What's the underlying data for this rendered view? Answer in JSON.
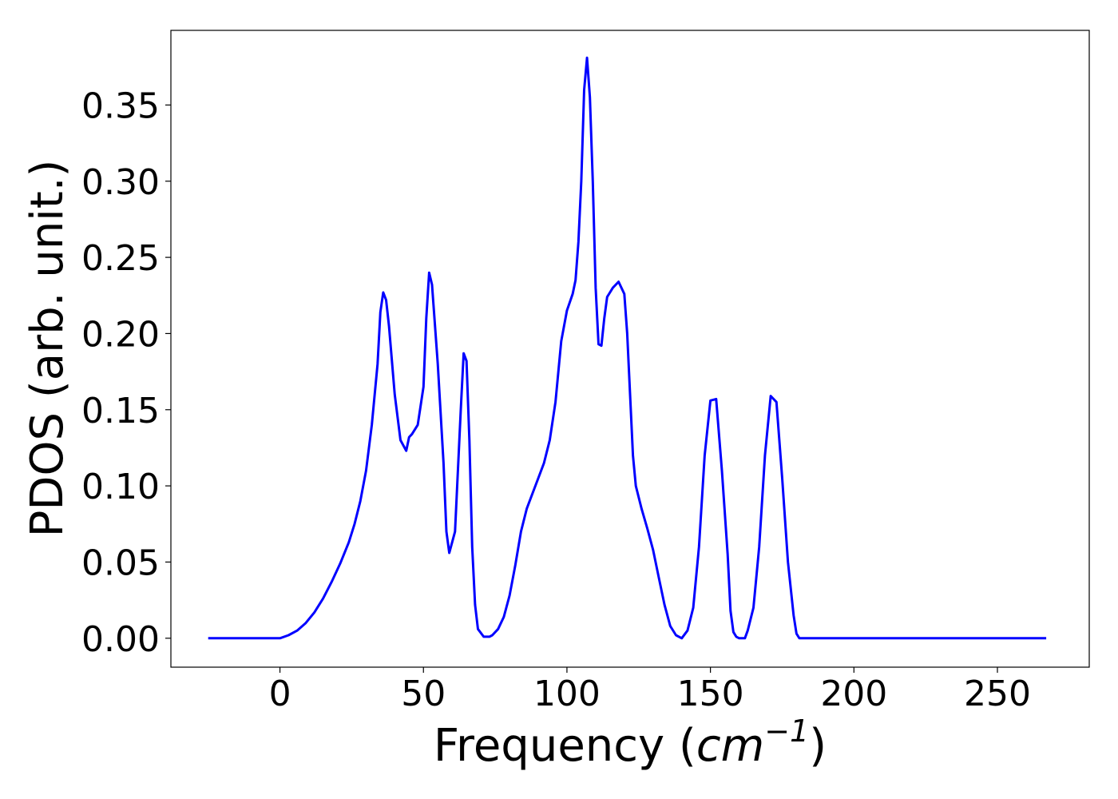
{
  "chart_data": {
    "type": "line",
    "xlabel": "Frequency",
    "xlabel_unit": {
      "open": "(",
      "base": "cm",
      "exponent": "−1",
      "close": ")"
    },
    "ylabel": "PDOS (arb. unit.)",
    "xlim": [
      -38,
      282
    ],
    "ylim": [
      -0.019,
      0.399
    ],
    "x_ticks": [
      0,
      50,
      100,
      150,
      200,
      250
    ],
    "x_tick_labels": [
      "0",
      "50",
      "100",
      "150",
      "200",
      "250"
    ],
    "y_ticks": [
      0.0,
      0.05,
      0.1,
      0.15,
      0.2,
      0.25,
      0.3,
      0.35
    ],
    "y_tick_labels": [
      "0.00",
      "0.05",
      "0.10",
      "0.15",
      "0.20",
      "0.25",
      "0.30",
      "0.35"
    ],
    "grid": false,
    "series": [
      {
        "color": "#0000ff",
        "x": [
          -25,
          -20,
          -15,
          -10,
          -5,
          0,
          3,
          6,
          9,
          12,
          15,
          18,
          21,
          24,
          26,
          28,
          30,
          32,
          34,
          35,
          36,
          37,
          38,
          40,
          42,
          44,
          45,
          46,
          48,
          50,
          51,
          52,
          53,
          55,
          57,
          58,
          59,
          61,
          63,
          64,
          65,
          66,
          67,
          68,
          69,
          71,
          73,
          74,
          76,
          78,
          80,
          82,
          84,
          86,
          88,
          90,
          92,
          94,
          96,
          98,
          100,
          102,
          103,
          104,
          105,
          106,
          107,
          108,
          109,
          110,
          111,
          112,
          113,
          114,
          116,
          118,
          120,
          121,
          122,
          123,
          124,
          126,
          128,
          130,
          132,
          134,
          136,
          138,
          140,
          142,
          144,
          146,
          148,
          150,
          152,
          154,
          156,
          157,
          158,
          159,
          160,
          161,
          162,
          163,
          165,
          167,
          169,
          171,
          173,
          175,
          177,
          179,
          180,
          181,
          182,
          183,
          184,
          185,
          187,
          189,
          192,
          200,
          210,
          220,
          230,
          232,
          234,
          236,
          238,
          240,
          241,
          242,
          243,
          244,
          245,
          246,
          247,
          249,
          251,
          255,
          260,
          267
        ],
        "y": [
          0.0,
          0.0,
          0.0,
          0.0,
          0.0,
          0.0,
          0.002,
          0.005,
          0.01,
          0.017,
          0.026,
          0.037,
          0.049,
          0.063,
          0.075,
          0.09,
          0.11,
          0.14,
          0.18,
          0.214,
          0.227,
          0.222,
          0.205,
          0.16,
          0.13,
          0.123,
          0.132,
          0.134,
          0.14,
          0.165,
          0.21,
          0.24,
          0.232,
          0.18,
          0.115,
          0.07,
          0.056,
          0.07,
          0.15,
          0.187,
          0.182,
          0.13,
          0.06,
          0.022,
          0.006,
          0.001,
          0.001,
          0.002,
          0.006,
          0.014,
          0.028,
          0.048,
          0.07,
          0.085,
          0.095,
          0.105,
          0.115,
          0.13,
          0.155,
          0.195,
          0.215,
          0.226,
          0.235,
          0.26,
          0.3,
          0.36,
          0.381,
          0.355,
          0.3,
          0.23,
          0.193,
          0.192,
          0.21,
          0.224,
          0.23,
          0.234,
          0.226,
          0.2,
          0.16,
          0.12,
          0.1,
          0.085,
          0.072,
          0.058,
          0.04,
          0.022,
          0.008,
          0.002,
          0.0,
          0.005,
          0.02,
          0.06,
          0.12,
          0.156,
          0.157,
          0.11,
          0.055,
          0.018,
          0.004,
          0.001,
          0.0,
          0.0,
          0.0,
          0.005,
          0.02,
          0.06,
          0.12,
          0.159,
          0.155,
          0.105,
          0.05,
          0.015,
          0.003,
          0.0,
          0.0,
          0.0,
          0.0,
          0.0,
          0.0,
          0.0,
          0.0,
          0.0,
          0.0,
          0.0,
          0.0,
          0.0,
          0.0,
          0.0,
          0.0,
          0.0,
          0.0,
          0.0,
          0.0,
          0.0,
          0.0,
          0.0,
          0.0,
          0.0,
          0.0,
          0.0,
          0.0,
          0.0
        ]
      }
    ]
  }
}
